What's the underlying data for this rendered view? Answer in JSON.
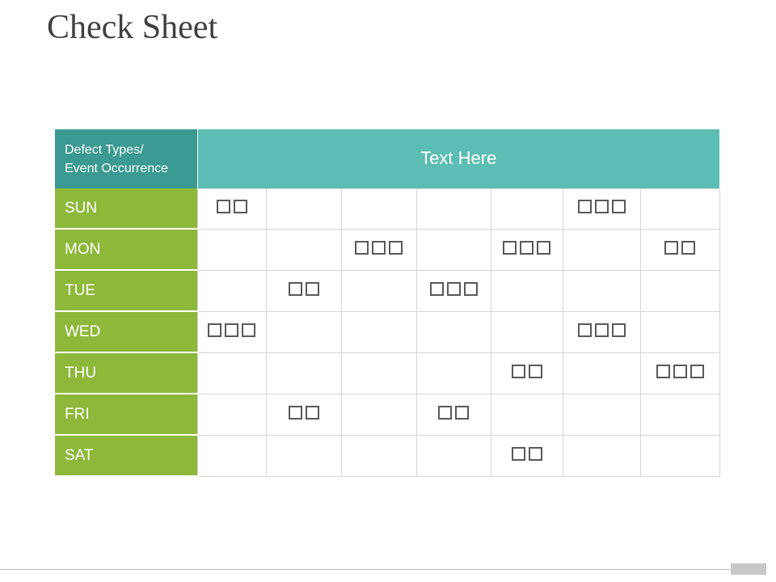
{
  "title": "Check Sheet",
  "table": {
    "corner_label_line1": "Defect Types/",
    "corner_label_line2": "Event Occurrence",
    "header_label": "Text Here",
    "rows": [
      {
        "day": "SUN",
        "marks": [
          2,
          0,
          0,
          0,
          0,
          3,
          0
        ]
      },
      {
        "day": "MON",
        "marks": [
          0,
          0,
          3,
          0,
          3,
          0,
          2
        ]
      },
      {
        "day": "TUE",
        "marks": [
          0,
          2,
          0,
          3,
          0,
          0,
          0
        ]
      },
      {
        "day": "WED",
        "marks": [
          3,
          0,
          0,
          0,
          0,
          3,
          0
        ]
      },
      {
        "day": "THU",
        "marks": [
          0,
          0,
          0,
          0,
          2,
          0,
          3
        ]
      },
      {
        "day": "FRI",
        "marks": [
          0,
          2,
          0,
          2,
          0,
          0,
          0
        ]
      },
      {
        "day": "SAT",
        "marks": [
          0,
          0,
          0,
          0,
          2,
          0,
          0
        ]
      }
    ]
  },
  "colors": {
    "header_corner": "#3b9a92",
    "header_main": "#5bbdb3",
    "day_column": "#8db83a",
    "mark_border": "#595959"
  },
  "icons": {
    "tally_mark": "empty-square-icon"
  }
}
